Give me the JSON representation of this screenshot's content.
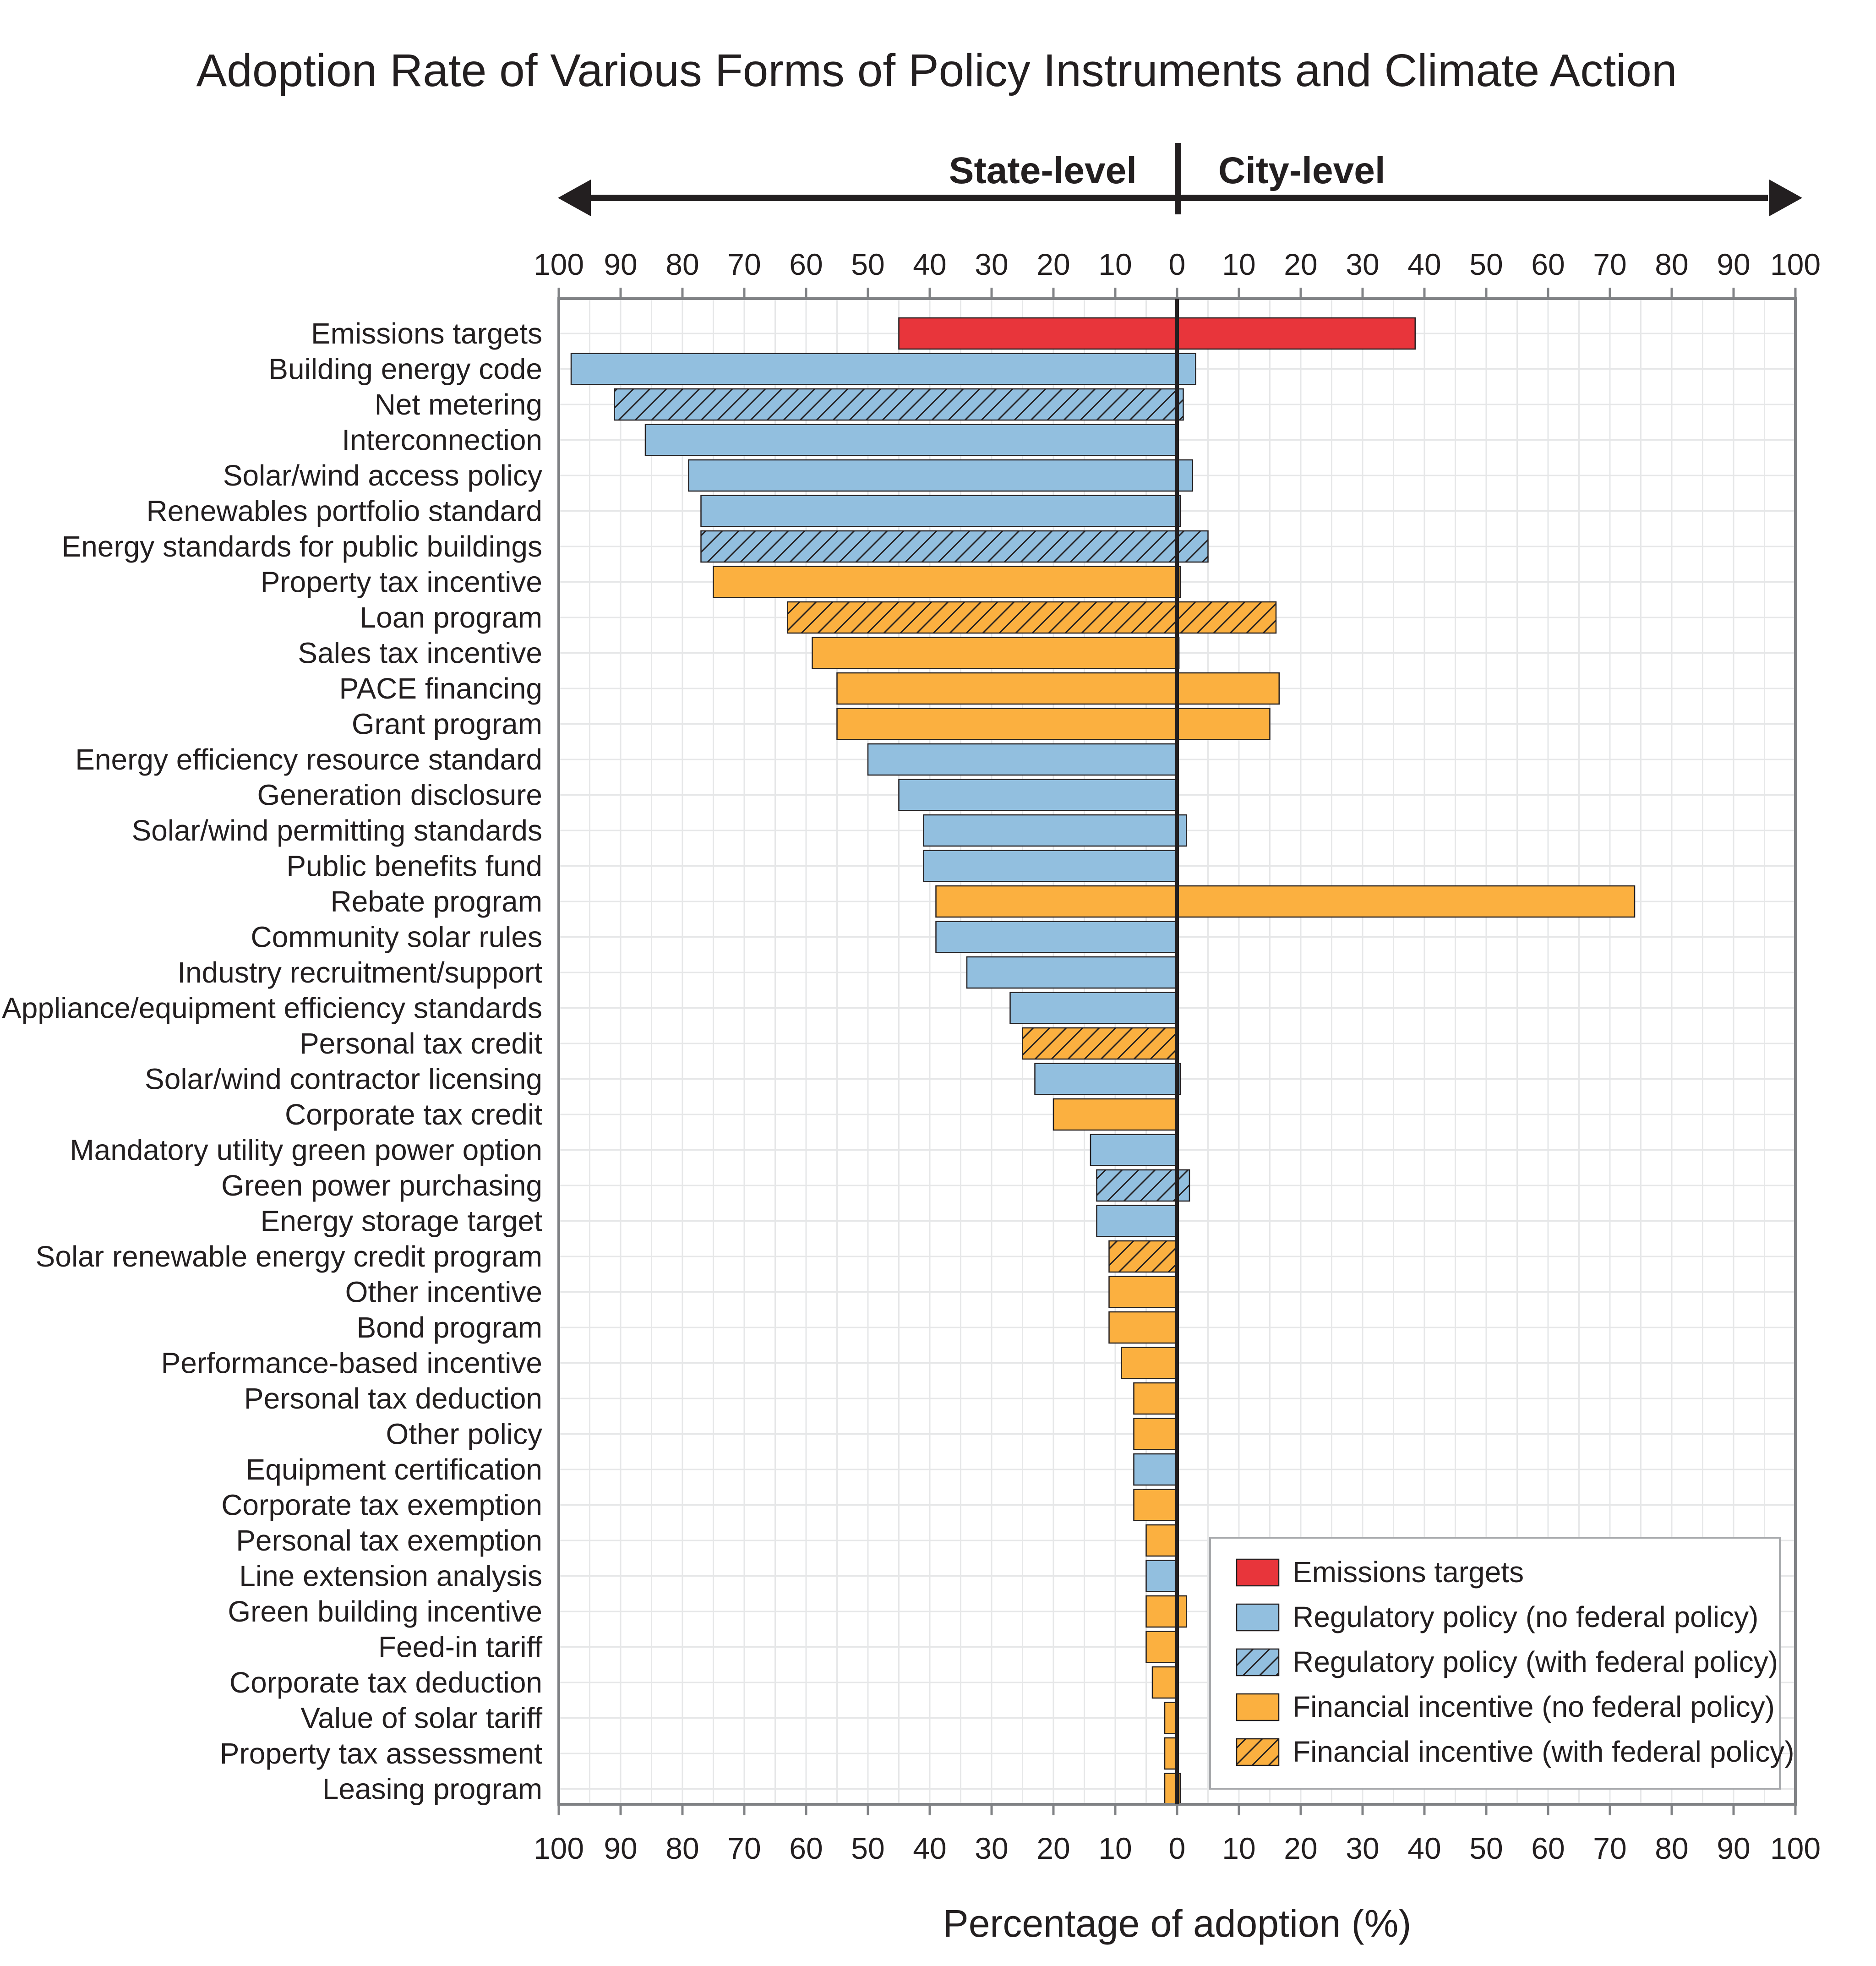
{
  "chart_data": {
    "type": "bar",
    "orientation": "horizontal-diverging",
    "title": "Adoption Rate of Various Forms of Policy Instruments and Climate Action",
    "left_label": "State-level",
    "right_label": "City-level",
    "xlabel": "Percentage of adoption (%)",
    "xlim": [
      0,
      100
    ],
    "ticks": [
      100,
      90,
      80,
      70,
      60,
      50,
      40,
      30,
      20,
      10,
      0,
      10,
      20,
      30,
      40,
      50,
      60,
      70,
      80,
      90,
      100
    ],
    "grid": true,
    "legend_position": "bottom-right",
    "colors": {
      "emissions": "#e8353b",
      "regulatory": "#92bfdf",
      "financial": "#fbb040",
      "axis": "#231f20",
      "frame": "#808285",
      "grid": "#e6e7e8"
    },
    "legend": [
      {
        "label": "Emissions targets",
        "category": "emissions",
        "federal": false
      },
      {
        "label": "Regulatory policy (no federal policy)",
        "category": "regulatory",
        "federal": false
      },
      {
        "label": "Regulatory policy (with federal policy)",
        "category": "regulatory",
        "federal": true
      },
      {
        "label": "Financial incentive (no federal policy)",
        "category": "financial",
        "federal": false
      },
      {
        "label": "Financial incentive (with federal policy)",
        "category": "financial",
        "federal": true
      }
    ],
    "categories": [
      "Emissions targets",
      "Building energy code",
      "Net metering",
      "Interconnection",
      "Solar/wind access policy",
      "Renewables portfolio standard",
      "Energy standards for public buildings",
      "Property tax incentive",
      "Loan program",
      "Sales tax incentive",
      "PACE financing",
      "Grant program",
      "Energy efficiency resource standard",
      "Generation disclosure",
      "Solar/wind permitting standards",
      "Public benefits fund",
      "Rebate program",
      "Community solar rules",
      "Industry recruitment/support",
      "Appliance/equipment efficiency standards",
      "Personal tax credit",
      "Solar/wind contractor licensing",
      "Corporate tax credit",
      "Mandatory utility green power option",
      "Green power purchasing",
      "Energy storage target",
      "Solar renewable energy credit program",
      "Other incentive",
      "Bond program",
      "Performance-based incentive",
      "Personal tax deduction",
      "Other policy",
      "Equipment certification",
      "Corporate tax exemption",
      "Personal tax exemption",
      "Line extension analysis",
      "Green building incentive",
      "Feed-in tariff",
      "Corporate tax deduction",
      "Value of solar tariff",
      "Property tax assessment",
      "Leasing program"
    ],
    "series": [
      {
        "name": "State-level",
        "values": [
          45,
          98,
          91,
          86,
          79,
          77,
          77,
          75,
          63,
          59,
          55,
          55,
          50,
          45,
          41,
          41,
          39,
          39,
          34,
          27,
          25,
          23,
          20,
          14,
          13,
          13,
          11,
          11,
          11,
          9,
          7,
          7,
          7,
          7,
          5,
          5,
          5,
          5,
          4,
          2,
          2,
          2
        ]
      },
      {
        "name": "City-level",
        "values": [
          38.5,
          3,
          1,
          0,
          2.5,
          0.5,
          5,
          0.5,
          16,
          0.3,
          16.5,
          15,
          0,
          0,
          1.5,
          0,
          74,
          0,
          0,
          0,
          0,
          0.5,
          0,
          0,
          2,
          0,
          0,
          0,
          0,
          0,
          0,
          0,
          0,
          0,
          0,
          0,
          1.5,
          0,
          0,
          0,
          0,
          0.5
        ]
      }
    ],
    "bar_category": [
      "emissions",
      "regulatory",
      "regulatory",
      "regulatory",
      "regulatory",
      "regulatory",
      "regulatory",
      "financial",
      "financial",
      "financial",
      "financial",
      "financial",
      "regulatory",
      "regulatory",
      "regulatory",
      "regulatory",
      "financial",
      "regulatory",
      "regulatory",
      "regulatory",
      "financial",
      "regulatory",
      "financial",
      "regulatory",
      "regulatory",
      "regulatory",
      "financial",
      "financial",
      "financial",
      "financial",
      "financial",
      "financial",
      "regulatory",
      "financial",
      "financial",
      "regulatory",
      "financial",
      "financial",
      "financial",
      "financial",
      "financial",
      "financial"
    ],
    "federal_policy": [
      false,
      false,
      true,
      false,
      false,
      false,
      true,
      false,
      true,
      false,
      false,
      false,
      false,
      false,
      false,
      false,
      false,
      false,
      false,
      false,
      true,
      false,
      false,
      false,
      true,
      false,
      true,
      false,
      false,
      false,
      false,
      false,
      false,
      false,
      false,
      false,
      false,
      false,
      false,
      false,
      false,
      false
    ]
  }
}
